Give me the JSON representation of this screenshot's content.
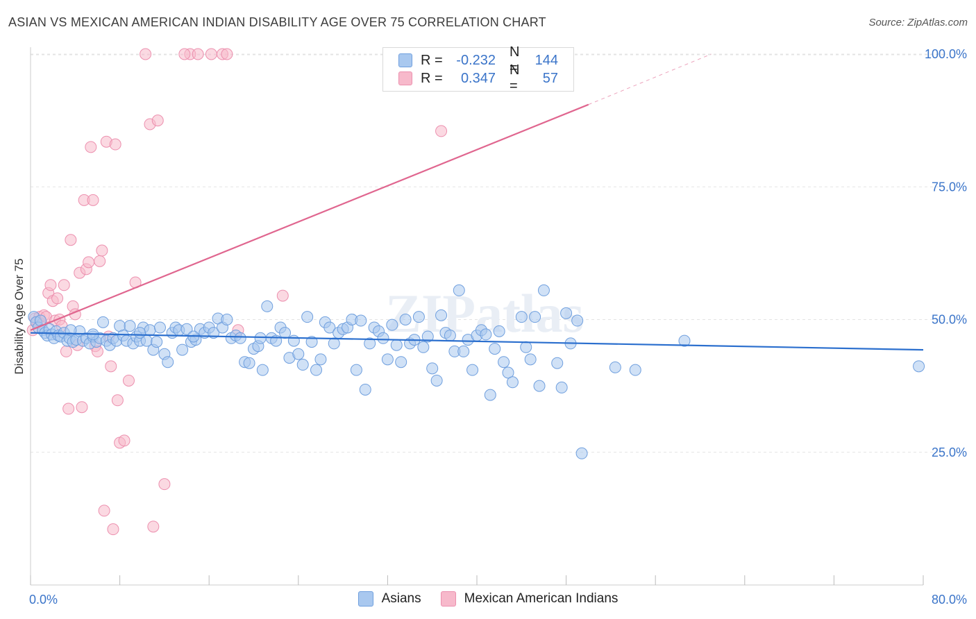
{
  "title": "ASIAN VS MEXICAN AMERICAN INDIAN DISABILITY AGE OVER 75 CORRELATION CHART",
  "source": "Source: ZipAtlas.com",
  "watermark": "ZIPatlas",
  "legend": {
    "r_label": "R =",
    "n_label": "N =",
    "asian_r": "-0.232",
    "asian_n": "144",
    "mex_r": "0.347",
    "mex_n": "57"
  },
  "colors": {
    "asian_fill": "#a9c8ef",
    "asian_stroke": "#6f9fde",
    "asian_line": "#2b6fce",
    "mex_fill": "#f7b9cb",
    "mex_stroke": "#ec8fae",
    "mex_line": "#e0668f",
    "tick_text": "#3a74c9"
  },
  "chart_data": {
    "type": "scatter",
    "title": "ASIAN VS MEXICAN AMERICAN INDIAN DISABILITY AGE OVER 75 CORRELATION CHART",
    "xlabel": "",
    "ylabel": "Disability Age Over 75",
    "xlim": [
      0,
      80
    ],
    "ylim": [
      0,
      104
    ],
    "x_tick_labels": [
      "0.0%",
      "80.0%"
    ],
    "y_ticks": [
      25,
      50,
      75,
      100
    ],
    "y_tick_labels": [
      "25.0%",
      "50.0%",
      "75.0%",
      "100.0%"
    ],
    "grid": true,
    "legend_position": "top-center",
    "series": [
      {
        "name": "Asians",
        "r": -0.232,
        "n": 144,
        "trend": {
          "x0": 0,
          "y0": 47.5,
          "x1": 80,
          "y1": 44.3
        },
        "points": [
          [
            0.3,
            50.5
          ],
          [
            0.5,
            49.5
          ],
          [
            0.7,
            48.5
          ],
          [
            0.9,
            49.8
          ],
          [
            1.1,
            48.0
          ],
          [
            1.3,
            47.5
          ],
          [
            1.5,
            47.0
          ],
          [
            1.7,
            48.2
          ],
          [
            1.9,
            47.2
          ],
          [
            2.1,
            46.5
          ],
          [
            2.3,
            47.8
          ],
          [
            2.5,
            47.0
          ],
          [
            2.7,
            46.8
          ],
          [
            3.0,
            47.5
          ],
          [
            3.3,
            46.0
          ],
          [
            3.5,
            46.5
          ],
          [
            3.8,
            45.8
          ],
          [
            4.1,
            46.2
          ],
          [
            4.4,
            47.8
          ],
          [
            4.7,
            46.0
          ],
          [
            5.0,
            46.5
          ],
          [
            5.3,
            45.5
          ],
          [
            5.6,
            46.8
          ],
          [
            5.9,
            45.8
          ],
          [
            6.2,
            46.5
          ],
          [
            6.5,
            49.5
          ],
          [
            6.8,
            46.0
          ],
          [
            7.1,
            45.2
          ],
          [
            7.4,
            46.5
          ],
          [
            7.7,
            46.0
          ],
          [
            8.0,
            48.8
          ],
          [
            8.3,
            47.0
          ],
          [
            8.6,
            46.0
          ],
          [
            8.9,
            48.8
          ],
          [
            9.2,
            45.5
          ],
          [
            9.5,
            46.8
          ],
          [
            9.8,
            46.0
          ],
          [
            10.1,
            48.5
          ],
          [
            10.4,
            46.0
          ],
          [
            10.7,
            48.0
          ],
          [
            11.0,
            44.3
          ],
          [
            11.3,
            45.8
          ],
          [
            11.6,
            48.5
          ],
          [
            12.0,
            43.5
          ],
          [
            12.3,
            42.0
          ],
          [
            12.7,
            47.5
          ],
          [
            13.0,
            48.5
          ],
          [
            13.3,
            48.0
          ],
          [
            13.6,
            44.3
          ],
          [
            14.0,
            48.2
          ],
          [
            14.4,
            45.8
          ],
          [
            14.8,
            46.2
          ],
          [
            15.2,
            48.2
          ],
          [
            15.6,
            47.5
          ],
          [
            16.0,
            48.5
          ],
          [
            16.4,
            47.5
          ],
          [
            16.8,
            50.2
          ],
          [
            17.2,
            48.5
          ],
          [
            17.6,
            50.0
          ],
          [
            18.0,
            46.5
          ],
          [
            18.4,
            47.0
          ],
          [
            18.8,
            46.5
          ],
          [
            19.2,
            42.0
          ],
          [
            19.6,
            41.8
          ],
          [
            20.0,
            44.5
          ],
          [
            20.4,
            45.0
          ],
          [
            20.8,
            40.5
          ],
          [
            21.2,
            52.5
          ],
          [
            21.6,
            46.5
          ],
          [
            22.0,
            46.0
          ],
          [
            22.4,
            48.5
          ],
          [
            22.8,
            47.5
          ],
          [
            23.2,
            42.8
          ],
          [
            23.6,
            46.0
          ],
          [
            24.0,
            43.5
          ],
          [
            24.4,
            41.5
          ],
          [
            24.8,
            50.5
          ],
          [
            25.2,
            45.8
          ],
          [
            25.6,
            40.5
          ],
          [
            26.0,
            42.5
          ],
          [
            26.4,
            49.5
          ],
          [
            26.8,
            48.5
          ],
          [
            27.2,
            45.5
          ],
          [
            27.6,
            47.5
          ],
          [
            28.0,
            48.2
          ],
          [
            28.4,
            48.5
          ],
          [
            28.8,
            50.0
          ],
          [
            29.2,
            40.5
          ],
          [
            29.6,
            49.8
          ],
          [
            30.0,
            36.8
          ],
          [
            30.4,
            45.5
          ],
          [
            30.8,
            48.5
          ],
          [
            31.2,
            47.8
          ],
          [
            31.6,
            46.5
          ],
          [
            32.0,
            42.5
          ],
          [
            32.4,
            49.0
          ],
          [
            32.8,
            45.2
          ],
          [
            33.2,
            42.0
          ],
          [
            33.6,
            50.0
          ],
          [
            34.0,
            45.5
          ],
          [
            34.4,
            46.2
          ],
          [
            34.8,
            50.5
          ],
          [
            35.2,
            44.8
          ],
          [
            35.6,
            46.8
          ],
          [
            36.0,
            40.8
          ],
          [
            36.4,
            38.5
          ],
          [
            36.8,
            50.8
          ],
          [
            37.2,
            47.5
          ],
          [
            37.6,
            47.0
          ],
          [
            38.0,
            44.0
          ],
          [
            38.4,
            55.5
          ],
          [
            38.8,
            44.0
          ],
          [
            39.2,
            46.2
          ],
          [
            39.6,
            40.5
          ],
          [
            40.0,
            47.0
          ],
          [
            40.4,
            48.0
          ],
          [
            40.8,
            47.2
          ],
          [
            41.2,
            35.8
          ],
          [
            41.6,
            44.5
          ],
          [
            42.0,
            47.8
          ],
          [
            42.4,
            42.0
          ],
          [
            42.8,
            40.0
          ],
          [
            43.2,
            38.2
          ],
          [
            44.0,
            50.5
          ],
          [
            44.4,
            44.8
          ],
          [
            44.8,
            42.5
          ],
          [
            45.2,
            50.5
          ],
          [
            45.6,
            37.5
          ],
          [
            46.0,
            55.5
          ],
          [
            47.2,
            41.8
          ],
          [
            47.6,
            37.2
          ],
          [
            48.0,
            51.2
          ],
          [
            48.4,
            45.5
          ],
          [
            49.0,
            49.8
          ],
          [
            49.4,
            24.8
          ],
          [
            52.4,
            41.0
          ],
          [
            54.2,
            40.5
          ],
          [
            58.6,
            46.0
          ],
          [
            79.6,
            41.2
          ],
          [
            3.6,
            48.0
          ],
          [
            5.6,
            47.2
          ],
          [
            9.8,
            47.5
          ],
          [
            14.6,
            46.8
          ],
          [
            20.6,
            46.5
          ]
        ]
      },
      {
        "name": "Mexican American Indians",
        "r": 0.347,
        "n": 57,
        "trend": {
          "x0": 0,
          "y0": 48.0,
          "x1": 50,
          "y1": 90.5
        },
        "trend_dashed": {
          "x0": 50,
          "y0": 90.5,
          "x1": 61,
          "y1": 100
        },
        "points": [
          [
            0.2,
            48.0
          ],
          [
            0.4,
            50.2
          ],
          [
            0.6,
            49.5
          ],
          [
            0.8,
            50.5
          ],
          [
            1.0,
            49.2
          ],
          [
            1.2,
            50.8
          ],
          [
            1.4,
            50.5
          ],
          [
            1.6,
            55.0
          ],
          [
            1.8,
            56.5
          ],
          [
            2.0,
            53.5
          ],
          [
            2.2,
            49.8
          ],
          [
            2.4,
            54.0
          ],
          [
            2.6,
            50.0
          ],
          [
            2.8,
            48.8
          ],
          [
            3.0,
            56.5
          ],
          [
            3.2,
            44.0
          ],
          [
            3.4,
            33.2
          ],
          [
            3.6,
            65.0
          ],
          [
            3.8,
            52.5
          ],
          [
            4.0,
            51.0
          ],
          [
            4.2,
            45.2
          ],
          [
            4.4,
            58.8
          ],
          [
            4.6,
            33.5
          ],
          [
            4.8,
            72.5
          ],
          [
            5.0,
            59.5
          ],
          [
            5.2,
            60.8
          ],
          [
            5.4,
            82.5
          ],
          [
            5.6,
            72.5
          ],
          [
            5.8,
            45.0
          ],
          [
            6.0,
            44.0
          ],
          [
            6.2,
            61.0
          ],
          [
            6.4,
            63.0
          ],
          [
            6.6,
            14.0
          ],
          [
            6.8,
            83.5
          ],
          [
            7.0,
            46.8
          ],
          [
            7.2,
            41.2
          ],
          [
            7.4,
            10.5
          ],
          [
            7.6,
            83.0
          ],
          [
            7.8,
            34.8
          ],
          [
            8.0,
            26.8
          ],
          [
            8.4,
            27.2
          ],
          [
            8.8,
            38.5
          ],
          [
            9.4,
            57.0
          ],
          [
            10.3,
            100.0
          ],
          [
            10.7,
            86.8
          ],
          [
            11.0,
            11.0
          ],
          [
            11.4,
            87.5
          ],
          [
            12.0,
            19.0
          ],
          [
            14.3,
            100.0
          ],
          [
            15.0,
            100.0
          ],
          [
            16.2,
            100.0
          ],
          [
            17.2,
            100.0
          ],
          [
            17.6,
            100.0
          ],
          [
            18.6,
            48.0
          ],
          [
            22.6,
            54.5
          ],
          [
            36.8,
            85.5
          ],
          [
            13.8,
            100.0
          ]
        ]
      }
    ]
  }
}
